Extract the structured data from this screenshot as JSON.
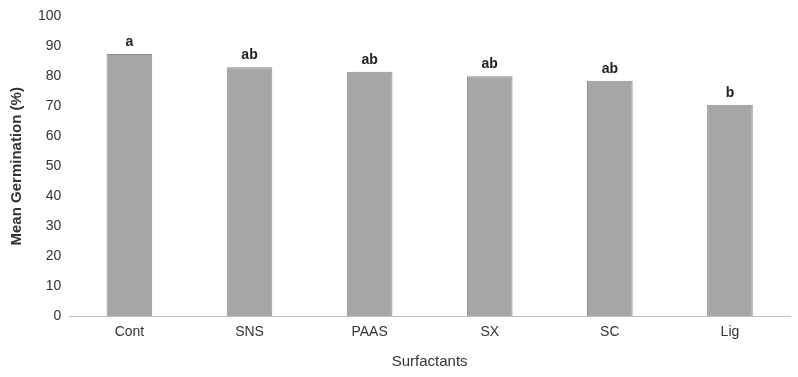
{
  "chart_data": {
    "type": "bar",
    "categories": [
      "Cont",
      "SNS",
      "PAAS",
      "SX",
      "SC",
      "Lig"
    ],
    "values": [
      87.5,
      83,
      81.5,
      80,
      78.5,
      70.5
    ],
    "color": "#a6a6a6",
    "ylim": [
      0,
      100
    ],
    "yticks": [
      0,
      10,
      20,
      30,
      40,
      50,
      60,
      70,
      80,
      90,
      100
    ],
    "grid": false,
    "x_label": "Surfactants",
    "y_label": "Mean Germination (%)",
    "annotations": [
      "a",
      "ab",
      "ab",
      "ab",
      "ab",
      "b"
    ]
  }
}
